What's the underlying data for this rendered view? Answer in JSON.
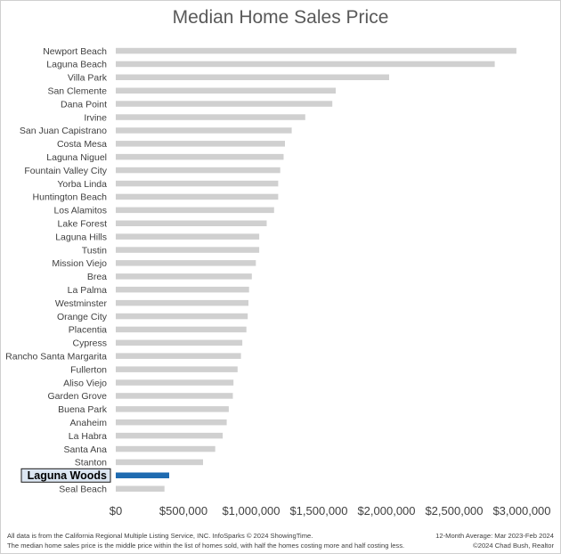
{
  "chart_data": {
    "type": "bar",
    "orientation": "horizontal",
    "title": "Median Home Sales Price",
    "categories": [
      "Newport Beach",
      "Laguna Beach",
      "Villa Park",
      "San Clemente",
      "Dana Point",
      "Irvine",
      "San Juan Capistrano",
      "Costa Mesa",
      "Laguna Niguel",
      "Fountain Valley City",
      "Yorba Linda",
      "Huntington Beach",
      "Los Alamitos",
      "Lake Forest",
      "Laguna Hills",
      "Tustin",
      "Mission Viejo",
      "Brea",
      "La Palma",
      "Westminster",
      "Orange City",
      "Placentia",
      "Cypress",
      "Rancho Santa Margarita",
      "Fullerton",
      "Aliso Viejo",
      "Garden Grove",
      "Buena Park",
      "Anaheim",
      "La Habra",
      "Santa Ana",
      "Stanton",
      "Laguna Woods",
      "Seal Beach"
    ],
    "values": [
      2960000,
      2800000,
      2020000,
      1625000,
      1600000,
      1400000,
      1300000,
      1250000,
      1240000,
      1215000,
      1200000,
      1200000,
      1170000,
      1115000,
      1060000,
      1060000,
      1035000,
      1005000,
      985000,
      980000,
      975000,
      965000,
      935000,
      925000,
      900000,
      870000,
      865000,
      835000,
      820000,
      790000,
      735000,
      645000,
      395000,
      360000
    ],
    "highlight": "Laguna Woods",
    "xlim": [
      0,
      3000000
    ],
    "xticks": [
      0,
      500000,
      1000000,
      1500000,
      2000000,
      2500000,
      3000000
    ],
    "xtick_labels": [
      "$0",
      "$500,000",
      "$1,000,000",
      "$1,500,000",
      "$2,000,000",
      "$2,500,000",
      "$3,000,000"
    ],
    "grid": false,
    "legend": "none",
    "colors": {
      "bar": "#d0d0d0",
      "highlight": "#1f6bb0",
      "highlight_label_bg": "#dce6f2"
    }
  },
  "footer": {
    "left_line1": "All data is from the California Regional Multiple Listing Service, INC. InfoSparks © 2024 ShowingTime.",
    "left_line2": "The median home sales price is the middle price within the list of homes sold, with half the homes costing more and half costing less.",
    "right_line1": "12-Month Average: Mar 2023-Feb 2024",
    "right_line2": "©2024 Chad Bush, Realtor"
  }
}
